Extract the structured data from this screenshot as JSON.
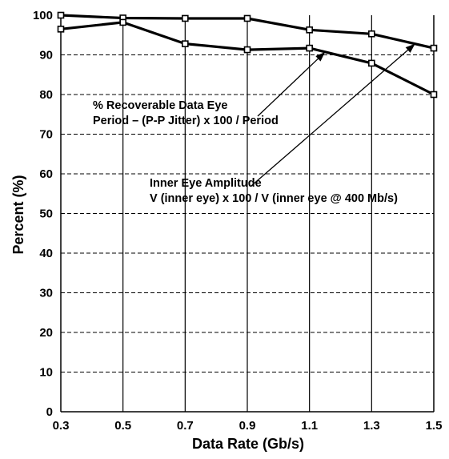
{
  "chart_data": {
    "type": "line",
    "xlabel": "Data Rate (Gb/s)",
    "ylabel": "Percent (%)",
    "x": [
      0.3,
      0.5,
      0.7,
      0.9,
      1.1,
      1.3,
      1.5
    ],
    "xlim": [
      0.3,
      1.5
    ],
    "ylim": [
      0,
      100
    ],
    "x_ticks": [
      "0.3",
      "0.5",
      "0.7",
      "0.9",
      "1.1",
      "1.3",
      "1.5"
    ],
    "y_ticks": [
      "0",
      "10",
      "20",
      "30",
      "40",
      "50",
      "60",
      "70",
      "80",
      "90",
      "100"
    ],
    "grid": {
      "horizontal": "dashed",
      "vertical": "solid"
    },
    "series": [
      {
        "values": [
          100,
          99.3,
          99.2,
          99.2,
          96.3,
          95.3,
          91.7
        ]
      },
      {
        "values": [
          96.5,
          98.2,
          92.8,
          91.3,
          91.7,
          87.9,
          80.0
        ]
      }
    ],
    "annotations": [
      {
        "lines": [
          "% Recoverable Data Eye",
          "Period – (P-P Jitter) x 100 / Period"
        ],
        "points_to": {
          "x": 1.15,
          "y": 90.7
        }
      },
      {
        "lines": [
          "Inner Eye Amplitude",
          "V (inner eye) x 100 / V (inner eye @ 400 Mb/s)"
        ],
        "points_to": {
          "x": 1.44,
          "y": 92.8
        }
      }
    ]
  }
}
